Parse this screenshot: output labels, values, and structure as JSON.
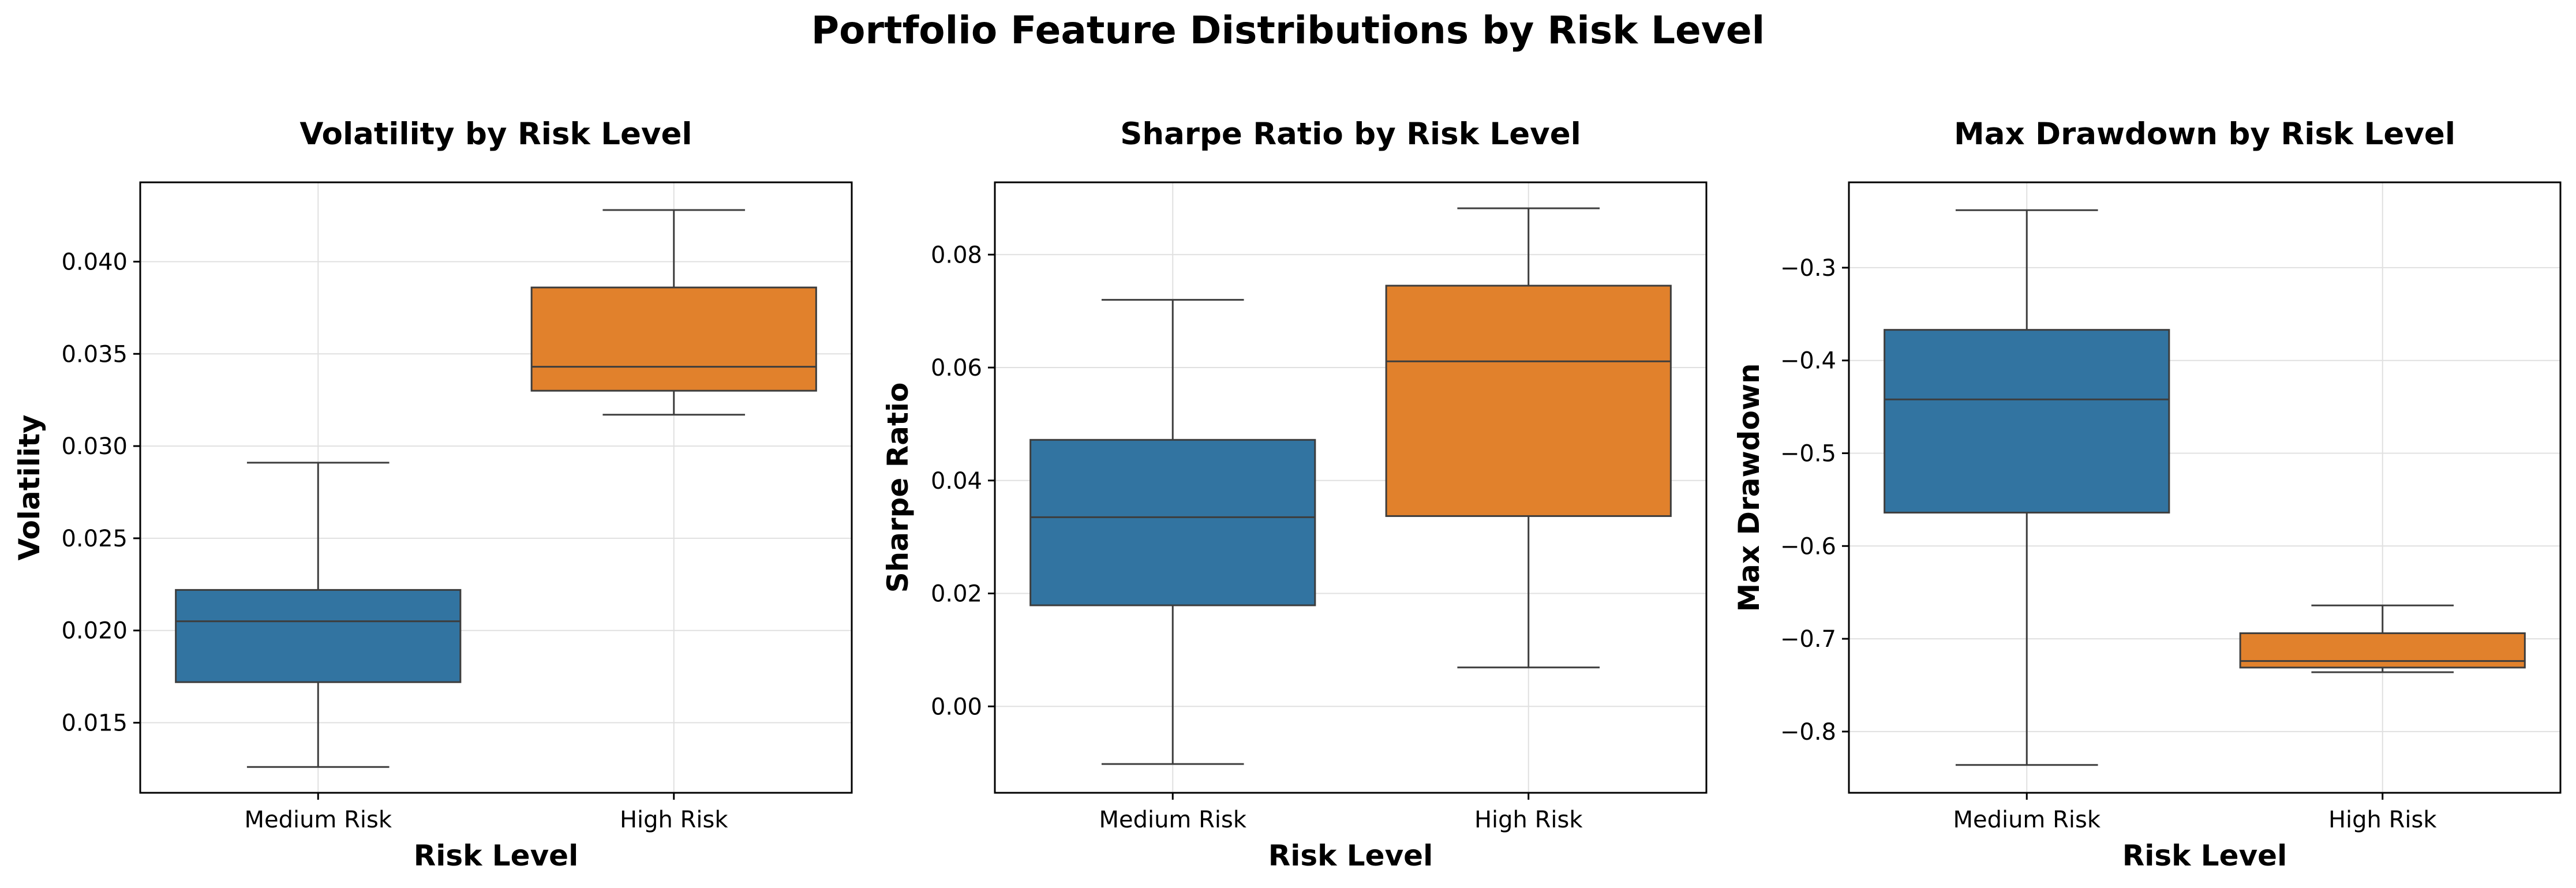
{
  "title": "Portfolio Feature Distributions by Risk Level",
  "colors": {
    "medium": "#3274A1",
    "high": "#E1812C",
    "line": "#3d3d3d",
    "grid": "#e0e0e0"
  },
  "chart_data": [
    {
      "type": "boxplot",
      "title": "Volatility by Risk Level",
      "xlabel": "Risk Level",
      "ylabel": "Volatility",
      "categories": [
        "Medium Risk",
        "High Risk"
      ],
      "ylim": [
        0.0112,
        0.0443
      ],
      "yticks": [
        0.015,
        0.02,
        0.025,
        0.03,
        0.035,
        0.04
      ],
      "ytick_labels": [
        "0.015",
        "0.020",
        "0.025",
        "0.030",
        "0.035",
        "0.040"
      ],
      "grid": true,
      "boxes": [
        {
          "category": "Medium Risk",
          "whisker_low": 0.0126,
          "q1": 0.0172,
          "median": 0.0205,
          "q3": 0.0222,
          "whisker_high": 0.0291
        },
        {
          "category": "High Risk",
          "whisker_low": 0.0317,
          "q1": 0.033,
          "median": 0.0343,
          "q3": 0.0386,
          "whisker_high": 0.0428
        }
      ]
    },
    {
      "type": "boxplot",
      "title": "Sharpe Ratio by Risk Level",
      "xlabel": "Risk Level",
      "ylabel": "Sharpe Ratio",
      "categories": [
        "Medium Risk",
        "High Risk"
      ],
      "ylim": [
        -0.0153,
        0.0928
      ],
      "yticks": [
        0.0,
        0.02,
        0.04,
        0.06,
        0.08
      ],
      "ytick_labels": [
        "0.00",
        "0.02",
        "0.04",
        "0.06",
        "0.08"
      ],
      "grid": true,
      "boxes": [
        {
          "category": "Medium Risk",
          "whisker_low": -0.0102,
          "q1": 0.0179,
          "median": 0.0335,
          "q3": 0.0472,
          "whisker_high": 0.072
        },
        {
          "category": "High Risk",
          "whisker_low": 0.0069,
          "q1": 0.0337,
          "median": 0.0611,
          "q3": 0.0745,
          "whisker_high": 0.0882
        }
      ]
    },
    {
      "type": "boxplot",
      "title": "Max Drawdown by Risk Level",
      "xlabel": "Risk Level",
      "ylabel": "Max Drawdown",
      "categories": [
        "Medium Risk",
        "High Risk"
      ],
      "ylim": [
        -0.866,
        -0.208
      ],
      "yticks": [
        -0.8,
        -0.7,
        -0.6,
        -0.5,
        -0.4,
        -0.3
      ],
      "ytick_labels": [
        "−0.8",
        "−0.7",
        "−0.6",
        "−0.5",
        "−0.4",
        "−0.3"
      ],
      "grid": true,
      "boxes": [
        {
          "category": "Medium Risk",
          "whisker_low": -0.836,
          "q1": -0.564,
          "median": -0.442,
          "q3": -0.367,
          "whisker_high": -0.238
        },
        {
          "category": "High Risk",
          "whisker_low": -0.736,
          "q1": -0.731,
          "median": -0.724,
          "q3": -0.694,
          "whisker_high": -0.664
        }
      ]
    }
  ]
}
